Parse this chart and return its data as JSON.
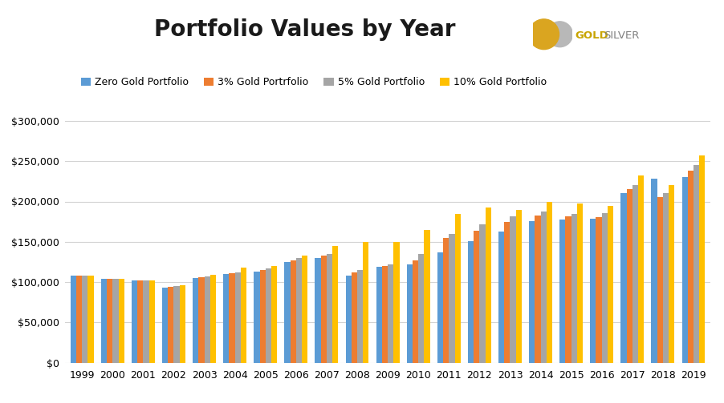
{
  "title": "Portfolio Values by Year",
  "years": [
    1999,
    2000,
    2001,
    2002,
    2003,
    2004,
    2005,
    2006,
    2007,
    2008,
    2009,
    2010,
    2011,
    2012,
    2013,
    2014,
    2015,
    2016,
    2017,
    2018,
    2019
  ],
  "series": {
    "Zero Gold Portfolio": [
      108000,
      104000,
      102000,
      93000,
      105000,
      110000,
      113000,
      125000,
      130000,
      108000,
      119000,
      122000,
      137000,
      151000,
      163000,
      176000,
      178000,
      179000,
      210000,
      228000,
      230000
    ],
    "3% Gold Portrfolio": [
      108000,
      104000,
      102000,
      94000,
      106000,
      111000,
      115000,
      127000,
      133000,
      112000,
      120000,
      127000,
      155000,
      164000,
      175000,
      183000,
      182000,
      181000,
      215000,
      205000,
      238000
    ],
    "5% Gold Portfolio": [
      108000,
      104000,
      102000,
      95000,
      107000,
      112000,
      117000,
      130000,
      135000,
      115000,
      122000,
      135000,
      160000,
      172000,
      182000,
      188000,
      185000,
      186000,
      220000,
      210000,
      245000
    ],
    "10% Gold Portfolio": [
      108000,
      104000,
      102000,
      96000,
      109000,
      118000,
      120000,
      133000,
      145000,
      150000,
      150000,
      165000,
      185000,
      193000,
      190000,
      200000,
      198000,
      195000,
      232000,
      220000,
      257000
    ]
  },
  "colors": {
    "Zero Gold Portfolio": "#5B9BD5",
    "3% Gold Portrfolio": "#ED7D31",
    "5% Gold Portfolio": "#A5A5A5",
    "10% Gold Portfolio": "#FFC000"
  },
  "legend_labels": [
    "Zero Gold Portfolio",
    "3% Gold Portrfolio",
    "5% Gold Portfolio",
    "10% Gold Portfolio"
  ],
  "ylim": [
    0,
    310000
  ],
  "yticks": [
    0,
    50000,
    100000,
    150000,
    200000,
    250000,
    300000
  ],
  "background_color": "#FFFFFF",
  "grid_color": "#D3D3D3",
  "title_fontsize": 20,
  "tick_fontsize": 9,
  "legend_fontsize": 9,
  "bar_width": 0.19,
  "logo_text_gold": "GOLD",
  "logo_text_silver": "SILVER",
  "logo_color_gold": "#C8A400",
  "logo_color_silver": "#808080"
}
